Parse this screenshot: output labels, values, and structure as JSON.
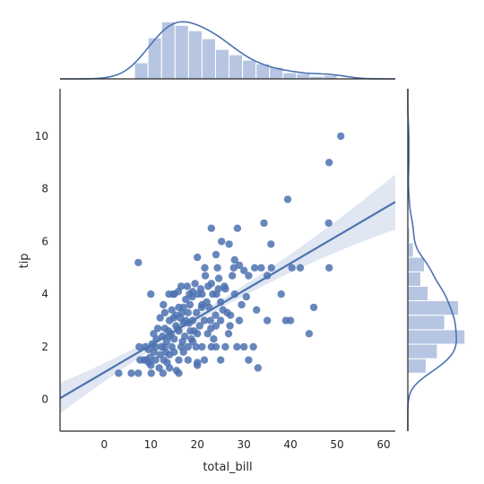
{
  "chart_data": {
    "type": "scatter",
    "xlabel": "total_bill",
    "ylabel": "tip",
    "xlim": [
      -9.5,
      62.5
    ],
    "ylim": [
      -1.2,
      11.8
    ],
    "xticks": [
      0,
      10,
      20,
      30,
      40,
      50,
      60
    ],
    "yticks": [
      0,
      2,
      4,
      6,
      8,
      10
    ],
    "grid": false,
    "colors": {
      "points": "#4c72b0",
      "line": "#4c72b0",
      "ci_band": "#dbe3f0",
      "hist": "#b6c6e2",
      "axis": "#262626"
    },
    "points": [
      [
        50.8,
        10.0
      ],
      [
        48.3,
        9.0
      ],
      [
        39.4,
        7.6
      ],
      [
        48.2,
        6.7
      ],
      [
        34.3,
        6.7
      ],
      [
        23.0,
        6.5
      ],
      [
        28.6,
        6.5
      ],
      [
        25.2,
        6.0
      ],
      [
        26.8,
        5.9
      ],
      [
        35.8,
        5.9
      ],
      [
        24.0,
        5.5
      ],
      [
        20.0,
        5.4
      ],
      [
        28.0,
        5.3
      ],
      [
        7.3,
        5.2
      ],
      [
        48.3,
        5.0
      ],
      [
        21.6,
        5.0
      ],
      [
        24.3,
        5.0
      ],
      [
        33.7,
        5.0
      ],
      [
        32.3,
        5.0
      ],
      [
        27.8,
        5.0
      ],
      [
        35.9,
        5.0
      ],
      [
        42.1,
        5.0
      ],
      [
        40.3,
        5.0
      ],
      [
        29.0,
        5.1
      ],
      [
        30.0,
        4.9
      ],
      [
        27.5,
        4.7
      ],
      [
        35.0,
        4.7
      ],
      [
        31.0,
        4.7
      ],
      [
        24.6,
        4.6
      ],
      [
        23.0,
        4.4
      ],
      [
        19.5,
        4.4
      ],
      [
        16.5,
        4.3
      ],
      [
        17.8,
        4.3
      ],
      [
        22.3,
        4.3
      ],
      [
        25.8,
        4.3
      ],
      [
        20.7,
        4.2
      ],
      [
        26.0,
        4.2
      ],
      [
        19.0,
        4.1
      ],
      [
        15.9,
        4.1
      ],
      [
        14.8,
        4.0
      ],
      [
        18.3,
        4.0
      ],
      [
        10.0,
        4.0
      ],
      [
        13.9,
        4.0
      ],
      [
        21.0,
        4.0
      ],
      [
        20.1,
        4.0
      ],
      [
        23.3,
        4.0
      ],
      [
        24.1,
        4.0
      ],
      [
        28.0,
        4.0
      ],
      [
        38.0,
        4.0
      ],
      [
        15.0,
        4.0
      ],
      [
        30.5,
        3.9
      ],
      [
        22.0,
        3.7
      ],
      [
        21.0,
        3.6
      ],
      [
        25.0,
        3.7
      ],
      [
        18.4,
        3.6
      ],
      [
        12.7,
        3.6
      ],
      [
        17.0,
        3.5
      ],
      [
        16.0,
        3.5
      ],
      [
        14.5,
        3.4
      ],
      [
        18.0,
        3.3
      ],
      [
        27.1,
        3.2
      ],
      [
        23.9,
        3.2
      ],
      [
        19.8,
        3.3
      ],
      [
        13.0,
        3.3
      ],
      [
        15.4,
        3.2
      ],
      [
        16.3,
        3.1
      ],
      [
        12.0,
        3.1
      ],
      [
        14.0,
        3.0
      ],
      [
        17.5,
        3.0
      ],
      [
        19.0,
        3.0
      ],
      [
        21.5,
        3.0
      ],
      [
        22.8,
        3.0
      ],
      [
        25.0,
        3.0
      ],
      [
        29.0,
        3.0
      ],
      [
        35.0,
        3.0
      ],
      [
        39.0,
        3.0
      ],
      [
        40.0,
        3.0
      ],
      [
        45.0,
        3.5
      ],
      [
        17.0,
        2.9
      ],
      [
        15.4,
        2.8
      ],
      [
        20.5,
        2.8
      ],
      [
        24.0,
        2.8
      ],
      [
        13.0,
        2.7
      ],
      [
        11.5,
        2.7
      ],
      [
        16.0,
        2.6
      ],
      [
        18.5,
        2.6
      ],
      [
        22.2,
        2.5
      ],
      [
        10.6,
        2.5
      ],
      [
        14.3,
        2.5
      ],
      [
        20.0,
        2.5
      ],
      [
        26.7,
        2.5
      ],
      [
        44.0,
        2.5
      ],
      [
        12.5,
        2.4
      ],
      [
        17.3,
        2.4
      ],
      [
        15.0,
        2.3
      ],
      [
        18.7,
        2.3
      ],
      [
        13.4,
        2.2
      ],
      [
        16.8,
        2.2
      ],
      [
        10.3,
        2.1
      ],
      [
        11.0,
        2.0
      ],
      [
        12.3,
        2.0
      ],
      [
        14.5,
        2.0
      ],
      [
        18.0,
        2.0
      ],
      [
        19.7,
        2.0
      ],
      [
        21.0,
        2.0
      ],
      [
        23.0,
        2.0
      ],
      [
        24.0,
        2.0
      ],
      [
        26.0,
        2.0
      ],
      [
        30.0,
        2.0
      ],
      [
        7.5,
        2.0
      ],
      [
        8.8,
        2.0
      ],
      [
        9.5,
        1.9
      ],
      [
        13.2,
        1.8
      ],
      [
        15.0,
        1.8
      ],
      [
        17.0,
        1.8
      ],
      [
        12.0,
        1.7
      ],
      [
        14.0,
        1.7
      ],
      [
        9.0,
        1.5
      ],
      [
        11.0,
        1.5
      ],
      [
        12.8,
        1.5
      ],
      [
        16.0,
        1.5
      ],
      [
        18.0,
        1.5
      ],
      [
        20.0,
        1.4
      ],
      [
        13.5,
        1.4
      ],
      [
        10.0,
        1.3
      ],
      [
        7.7,
        1.5
      ],
      [
        8.5,
        1.5
      ],
      [
        9.6,
        1.4
      ],
      [
        25.0,
        1.5
      ],
      [
        31.0,
        1.5
      ],
      [
        3.1,
        1.0
      ],
      [
        5.8,
        1.0
      ],
      [
        7.3,
        1.0
      ],
      [
        10.1,
        1.0
      ],
      [
        12.6,
        1.0
      ],
      [
        16.0,
        1.0
      ],
      [
        33.0,
        1.2
      ],
      [
        11.8,
        1.2
      ],
      [
        14.0,
        1.2
      ],
      [
        15.5,
        1.1
      ],
      [
        20.0,
        1.3
      ],
      [
        21.5,
        1.5
      ],
      [
        28.5,
        2.0
      ],
      [
        32.0,
        2.0
      ],
      [
        14.0,
        2.4
      ],
      [
        16.5,
        2.0
      ],
      [
        19.0,
        2.2
      ],
      [
        22.5,
        3.5
      ],
      [
        25.5,
        3.4
      ],
      [
        32.7,
        3.4
      ],
      [
        29.5,
        3.6
      ],
      [
        17.5,
        3.8
      ],
      [
        20.9,
        3.5
      ],
      [
        18.2,
        2.9
      ],
      [
        13.8,
        2.6
      ],
      [
        11.2,
        2.3
      ],
      [
        15.8,
        2.7
      ],
      [
        21.7,
        4.7
      ],
      [
        18.9,
        3.9
      ],
      [
        16.7,
        3.3
      ],
      [
        12.9,
        2.0
      ],
      [
        10.7,
        1.8
      ],
      [
        9.8,
        1.6
      ],
      [
        14.9,
        3.1
      ],
      [
        19.3,
        2.6
      ],
      [
        23.5,
        2.3
      ],
      [
        27.0,
        2.8
      ],
      [
        24.5,
        4.2
      ],
      [
        26.4,
        3.3
      ],
      [
        22.9,
        2.7
      ]
    ],
    "regression": {
      "x": [
        -9.5,
        62.5
      ],
      "y": [
        0.05,
        7.5
      ],
      "ci_half_width": [
        0.4,
        0.9
      ]
    },
    "x_hist": {
      "edges": [
        6.5,
        9.4,
        12.3,
        15.2,
        18.1,
        21.0,
        23.9,
        26.8,
        29.7,
        32.6,
        35.5,
        38.4,
        41.3,
        44.2,
        47.1,
        50.0
      ],
      "density": [
        0.018,
        0.046,
        0.064,
        0.06,
        0.054,
        0.045,
        0.033,
        0.027,
        0.021,
        0.017,
        0.013,
        0.007,
        0.006,
        0.003,
        0.004
      ]
    },
    "y_hist": {
      "edges": [
        1.0,
        1.55,
        2.1,
        2.65,
        3.2,
        3.75,
        4.3,
        4.85,
        5.4,
        5.95,
        6.5
      ],
      "density": [
        0.2,
        0.32,
        0.62,
        0.4,
        0.55,
        0.22,
        0.14,
        0.18,
        0.06,
        0.02
      ]
    }
  }
}
